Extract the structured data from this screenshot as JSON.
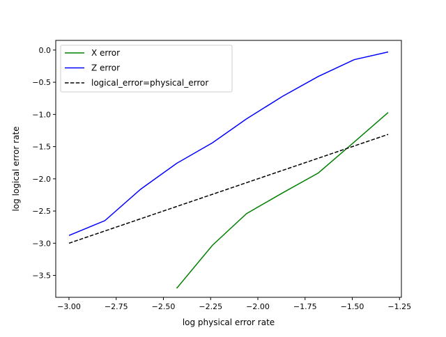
{
  "chart_data": {
    "type": "line",
    "title": "",
    "xlabel": "log physical error rate",
    "ylabel": "log logical error rate",
    "xlim": [
      -3.07,
      -1.24
    ],
    "ylim": [
      -3.84,
      0.15
    ],
    "xticks": [
      -3.0,
      -2.75,
      -2.5,
      -2.25,
      -2.0,
      -1.75,
      -1.5,
      -1.25
    ],
    "xtick_labels": [
      "−3.00",
      "−2.75",
      "−2.50",
      "−2.25",
      "−2.00",
      "−1.75",
      "−1.50",
      "−1.25"
    ],
    "yticks": [
      0.0,
      -0.5,
      -1.0,
      -1.5,
      -2.0,
      -2.5,
      -3.0,
      -3.5
    ],
    "ytick_labels": [
      "0.0",
      "−0.5",
      "−1.0",
      "−1.5",
      "−2.0",
      "−2.5",
      "−3.0",
      "−3.5"
    ],
    "grid": false,
    "legend_position": "top-left",
    "series": [
      {
        "name": "X error",
        "color": "#008000",
        "dash": "solid",
        "x": [
          -2.43,
          -2.24,
          -2.06,
          -1.87,
          -1.68,
          -1.49,
          -1.31
        ],
        "y": [
          -3.7,
          -3.03,
          -2.54,
          -2.22,
          -1.91,
          -1.43,
          -0.97
        ]
      },
      {
        "name": "Z error",
        "color": "#0000ff",
        "dash": "solid",
        "x": [
          -3.0,
          -2.81,
          -2.62,
          -2.43,
          -2.24,
          -2.06,
          -1.87,
          -1.68,
          -1.49,
          -1.31
        ],
        "y": [
          -2.88,
          -2.65,
          -2.16,
          -1.76,
          -1.44,
          -1.07,
          -0.72,
          -0.41,
          -0.15,
          -0.03
        ]
      },
      {
        "name": "logical_error=physical_error",
        "color": "#000000",
        "dash": "dashed",
        "x": [
          -3.0,
          -1.31
        ],
        "y": [
          -3.0,
          -1.31
        ]
      }
    ]
  }
}
